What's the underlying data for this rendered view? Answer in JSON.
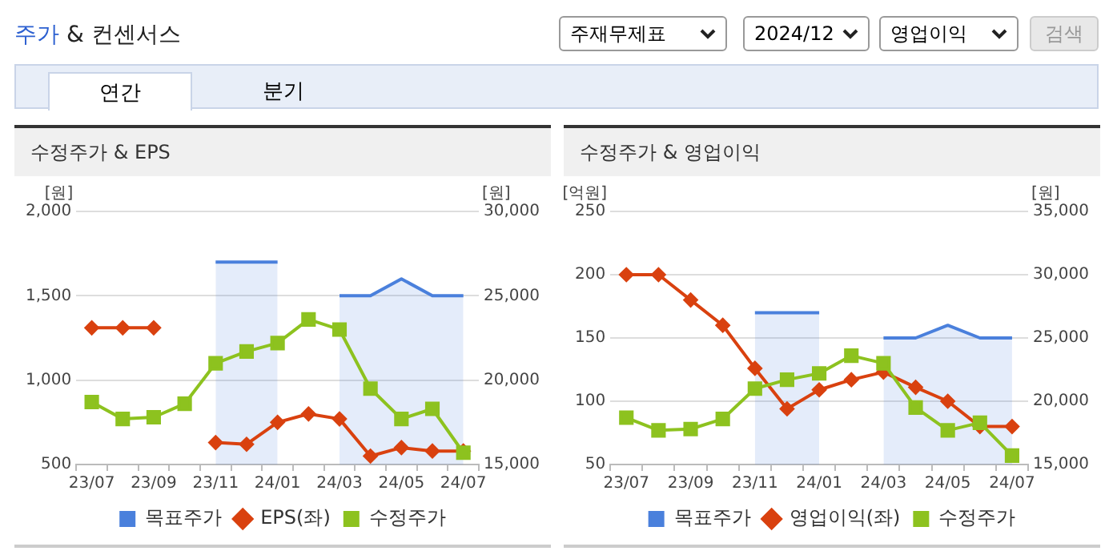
{
  "chart_data": [
    {
      "type": "other",
      "title": "주가 & 컨센서스",
      "annotations": [
        "주재무제표",
        "2024/12",
        "영업이익",
        "검색",
        "연간",
        "분기"
      ]
    },
    {
      "type": "line",
      "title": "수정주가 & EPS",
      "categories": [
        "23/07",
        null,
        "23/09",
        null,
        "23/11",
        null,
        "24/01",
        null,
        "24/03",
        null,
        "24/05",
        null,
        "24/07"
      ],
      "series": [
        {
          "name": "목표주가",
          "type": "area",
          "color": "#4a80dc",
          "axis": "y2",
          "marker": "none",
          "values": [
            null,
            null,
            null,
            null,
            27000,
            27000,
            27000,
            null,
            25000,
            25000,
            26000,
            25000,
            25000
          ]
        },
        {
          "name": "EPS(좌)",
          "type": "line",
          "color": "#d9410f",
          "marker": "diamond",
          "values": [
            1310,
            1310,
            1310,
            null,
            630,
            620,
            750,
            800,
            770,
            550,
            600,
            580,
            580
          ]
        },
        {
          "name": "수정주가",
          "type": "line",
          "color": "#8dc21f",
          "marker": "square",
          "axis": "y2",
          "values": [
            18700,
            17700,
            17800,
            18600,
            21000,
            21700,
            22200,
            23600,
            23000,
            19500,
            17700,
            18300,
            15700
          ]
        }
      ],
      "ylabel": "[원]",
      "y2label": "[원]",
      "ylim": [
        500,
        2000
      ],
      "yticks": [
        500,
        {
          "value": 1000,
          "label": "1,000"
        },
        {
          "value": 1500,
          "label": "1,500"
        },
        {
          "value": 2000,
          "label": "2,000"
        }
      ],
      "y2lim": [
        15000,
        30000
      ],
      "y2ticks": [
        {
          "value": 15000,
          "label": "15,000"
        },
        {
          "value": 20000,
          "label": "20,000"
        },
        {
          "value": 25000,
          "label": "25,000"
        },
        {
          "value": 30000,
          "label": "30,000"
        }
      ],
      "grid": "y",
      "legend": "bottom"
    },
    {
      "type": "line",
      "title": "수정주가 & 영업이익",
      "categories": [
        "23/07",
        null,
        "23/09",
        null,
        "23/11",
        null,
        "24/01",
        null,
        "24/03",
        null,
        "24/05",
        null,
        "24/07"
      ],
      "series": [
        {
          "name": "목표주가",
          "type": "area",
          "color": "#4a80dc",
          "axis": "y2",
          "marker": "none",
          "values": [
            null,
            null,
            null,
            null,
            27000,
            27000,
            27000,
            null,
            25000,
            25000,
            26000,
            25000,
            25000
          ]
        },
        {
          "name": "영업이익(좌)",
          "type": "line",
          "color": "#d9410f",
          "marker": "diamond",
          "values": [
            200,
            200,
            180,
            160,
            126,
            94,
            109,
            117,
            123,
            111,
            100,
            80,
            80
          ]
        },
        {
          "name": "수정주가",
          "type": "line",
          "color": "#8dc21f",
          "marker": "square",
          "axis": "y2",
          "values": [
            18700,
            17700,
            17800,
            18600,
            21000,
            21700,
            22200,
            23600,
            23000,
            19500,
            17700,
            18300,
            15700
          ]
        }
      ],
      "ylabel": "[억원]",
      "y2label": "[원]",
      "ylim": [
        50,
        250
      ],
      "yticks": [
        50,
        100,
        150,
        200,
        250
      ],
      "y2lim": [
        15000,
        35000
      ],
      "y2ticks": [
        {
          "value": 15000,
          "label": "15,000"
        },
        {
          "value": 20000,
          "label": "20,000"
        },
        {
          "value": 25000,
          "label": "25,000"
        },
        {
          "value": 30000,
          "label": "30,000"
        },
        {
          "value": 35000,
          "label": "35,000"
        }
      ],
      "grid": "y",
      "legend": "bottom"
    }
  ]
}
